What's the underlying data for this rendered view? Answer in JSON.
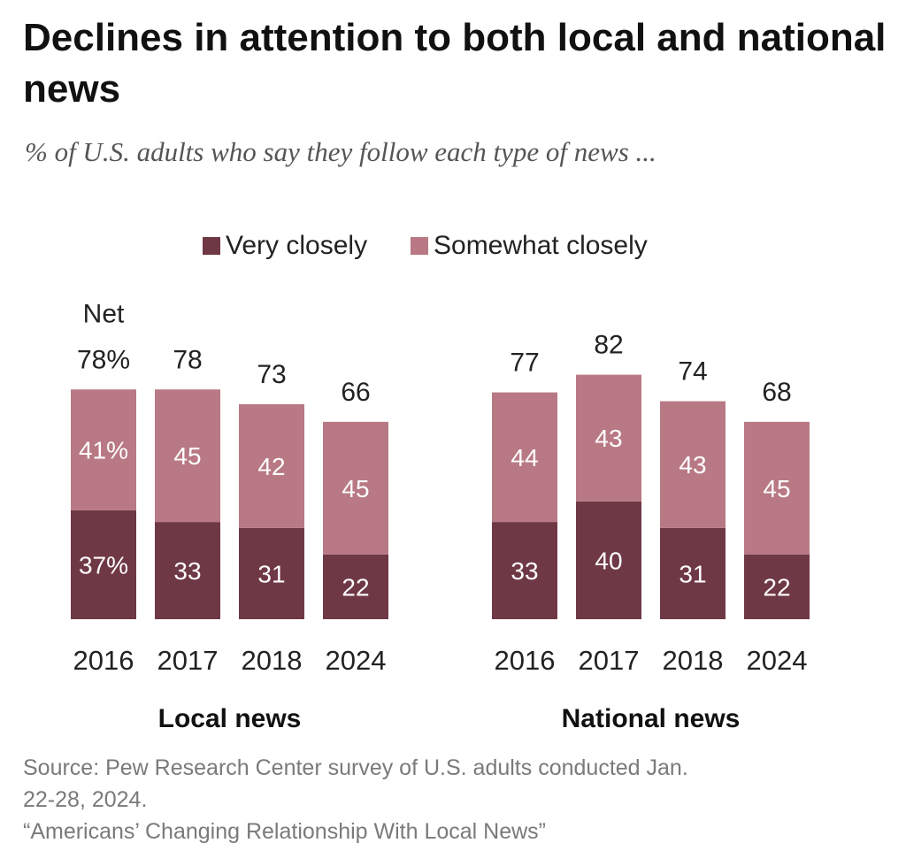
{
  "title": "Declines in attention to both local and national news",
  "subtitle": "% of U.S. adults who say they follow each type of news ...",
  "legend": {
    "very_closely": "Very closely",
    "somewhat_closely": "Somewhat closely"
  },
  "colors": {
    "very_closely": "#6f3845",
    "somewhat_closely": "#b87984",
    "text": "#222222"
  },
  "net_label": "Net",
  "chart_data": {
    "type": "bar",
    "stacked": true,
    "title": "Declines in attention to both local and national news",
    "subtitle": "% of U.S. adults who say they follow each type of news ...",
    "legend_placement": "top",
    "grid": false,
    "ylim": [
      0,
      100
    ],
    "panels": [
      {
        "name": "Local news",
        "categories": [
          "2016",
          "2017",
          "2018",
          "2024"
        ],
        "series": [
          {
            "name": "Very closely",
            "values": [
              37,
              33,
              31,
              22
            ]
          },
          {
            "name": "Somewhat closely",
            "values": [
              41,
              45,
              42,
              45
            ]
          }
        ],
        "net": [
          78,
          78,
          73,
          66
        ],
        "net_labels": [
          "78%",
          "78",
          "73",
          "66"
        ],
        "very_labels": [
          "37%",
          "33",
          "31",
          "22"
        ],
        "somewhat_labels": [
          "41%",
          "45",
          "42",
          "45"
        ]
      },
      {
        "name": "National news",
        "categories": [
          "2016",
          "2017",
          "2018",
          "2024"
        ],
        "series": [
          {
            "name": "Very closely",
            "values": [
              33,
              40,
              31,
              22
            ]
          },
          {
            "name": "Somewhat closely",
            "values": [
              44,
              43,
              43,
              45
            ]
          }
        ],
        "net": [
          77,
          82,
          74,
          68
        ],
        "net_labels": [
          "77",
          "82",
          "74",
          "68"
        ],
        "very_labels": [
          "33",
          "40",
          "31",
          "22"
        ],
        "somewhat_labels": [
          "44",
          "43",
          "43",
          "45"
        ]
      }
    ]
  },
  "source": {
    "line1": "Source: Pew Research Center survey of U.S. adults conducted Jan.",
    "line2": "22-28, 2024.",
    "line3": "“Americans’ Changing Relationship With Local News”"
  }
}
